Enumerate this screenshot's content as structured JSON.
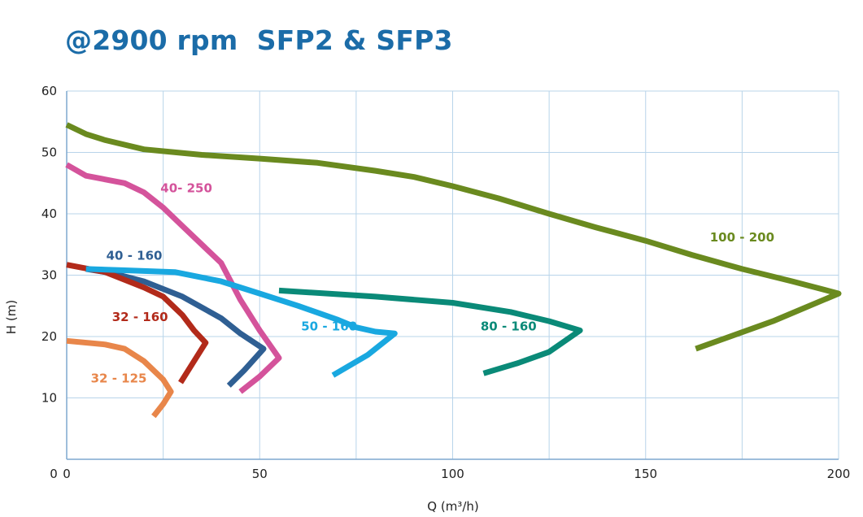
{
  "chart_data": {
    "type": "line",
    "title": "@2900 rpm  SFP2 & SFP3",
    "xlabel": "Q (m³/h)",
    "ylabel": "H (m)",
    "xlim": [
      0,
      200
    ],
    "ylim": [
      0,
      60
    ],
    "xticks": [
      0,
      50,
      100,
      150,
      200
    ],
    "yticks": [
      10,
      20,
      30,
      40,
      50,
      60
    ],
    "xgrid_step": 25,
    "ygrid_step": 10,
    "grid": true,
    "grid_color": "#b8d4ea",
    "series": [
      {
        "name": "100 - 200",
        "color": "#6a8a1f",
        "label_at": [
          175,
          35.5
        ],
        "points": [
          [
            0,
            54.5
          ],
          [
            5,
            53
          ],
          [
            10,
            52
          ],
          [
            20,
            50.5
          ],
          [
            35,
            49.6
          ],
          [
            50,
            49
          ],
          [
            65,
            48.3
          ],
          [
            80,
            47
          ],
          [
            90,
            46
          ],
          [
            100,
            44.5
          ],
          [
            112,
            42.5
          ],
          [
            125,
            40
          ],
          [
            137,
            37.8
          ],
          [
            150,
            35.6
          ],
          [
            162,
            33.3
          ],
          [
            175,
            31
          ],
          [
            188,
            29
          ],
          [
            200,
            27
          ],
          [
            183,
            22.5
          ],
          [
            163,
            18
          ]
        ]
      },
      {
        "name": "40- 250",
        "color": "#d4539b",
        "label_at": [
          31,
          43.5
        ],
        "points": [
          [
            0,
            48
          ],
          [
            5,
            46.2
          ],
          [
            15,
            45
          ],
          [
            20,
            43.5
          ],
          [
            25,
            41
          ],
          [
            30,
            38
          ],
          [
            35,
            35
          ],
          [
            40,
            32
          ],
          [
            45,
            26
          ],
          [
            50,
            21
          ],
          [
            55,
            16.5
          ],
          [
            50,
            13.5
          ],
          [
            45,
            11
          ]
        ]
      },
      {
        "name": "40 - 160",
        "color": "#2f5f93",
        "label_at": [
          17.5,
          32.5
        ],
        "points": [
          [
            5,
            31
          ],
          [
            12,
            30.3
          ],
          [
            20,
            29
          ],
          [
            30,
            26.5
          ],
          [
            40,
            23
          ],
          [
            45,
            20.5
          ],
          [
            51,
            18
          ],
          [
            46,
            14.5
          ],
          [
            42,
            12
          ]
        ]
      },
      {
        "name": "32 - 160",
        "color": "#b22a1a",
        "label_at": [
          19,
          22.5
        ],
        "points": [
          [
            0,
            31.7
          ],
          [
            10,
            30.5
          ],
          [
            20,
            28
          ],
          [
            25,
            26.5
          ],
          [
            30,
            23.5
          ],
          [
            33,
            21
          ],
          [
            36,
            19
          ],
          [
            33,
            16
          ],
          [
            29.5,
            12.5
          ]
        ]
      },
      {
        "name": "32 - 125",
        "color": "#e8864a",
        "label_at": [
          13.5,
          12.5
        ],
        "points": [
          [
            0,
            19.3
          ],
          [
            10,
            18.7
          ],
          [
            15,
            18
          ],
          [
            20,
            16
          ],
          [
            25,
            13
          ],
          [
            27,
            11
          ],
          [
            25,
            9
          ],
          [
            22.5,
            7
          ]
        ]
      },
      {
        "name": "50 - 160",
        "color": "#19a8e0",
        "label_at": [
          68,
          21
        ],
        "points": [
          [
            5,
            31
          ],
          [
            15,
            30.8
          ],
          [
            28,
            30.5
          ],
          [
            40,
            29
          ],
          [
            50,
            27
          ],
          [
            60,
            25
          ],
          [
            70,
            22.8
          ],
          [
            75,
            21.5
          ],
          [
            80,
            20.8
          ],
          [
            85,
            20.5
          ],
          [
            78,
            17
          ],
          [
            69,
            13.7
          ]
        ]
      },
      {
        "name": "80 - 160",
        "color": "#0a8a78",
        "label_at": [
          114.5,
          21
        ],
        "points": [
          [
            55,
            27.5
          ],
          [
            80,
            26.5
          ],
          [
            100,
            25.5
          ],
          [
            115,
            24
          ],
          [
            125,
            22.5
          ],
          [
            133,
            21
          ],
          [
            125,
            17.5
          ],
          [
            117,
            15.7
          ],
          [
            108,
            14
          ]
        ]
      }
    ]
  }
}
